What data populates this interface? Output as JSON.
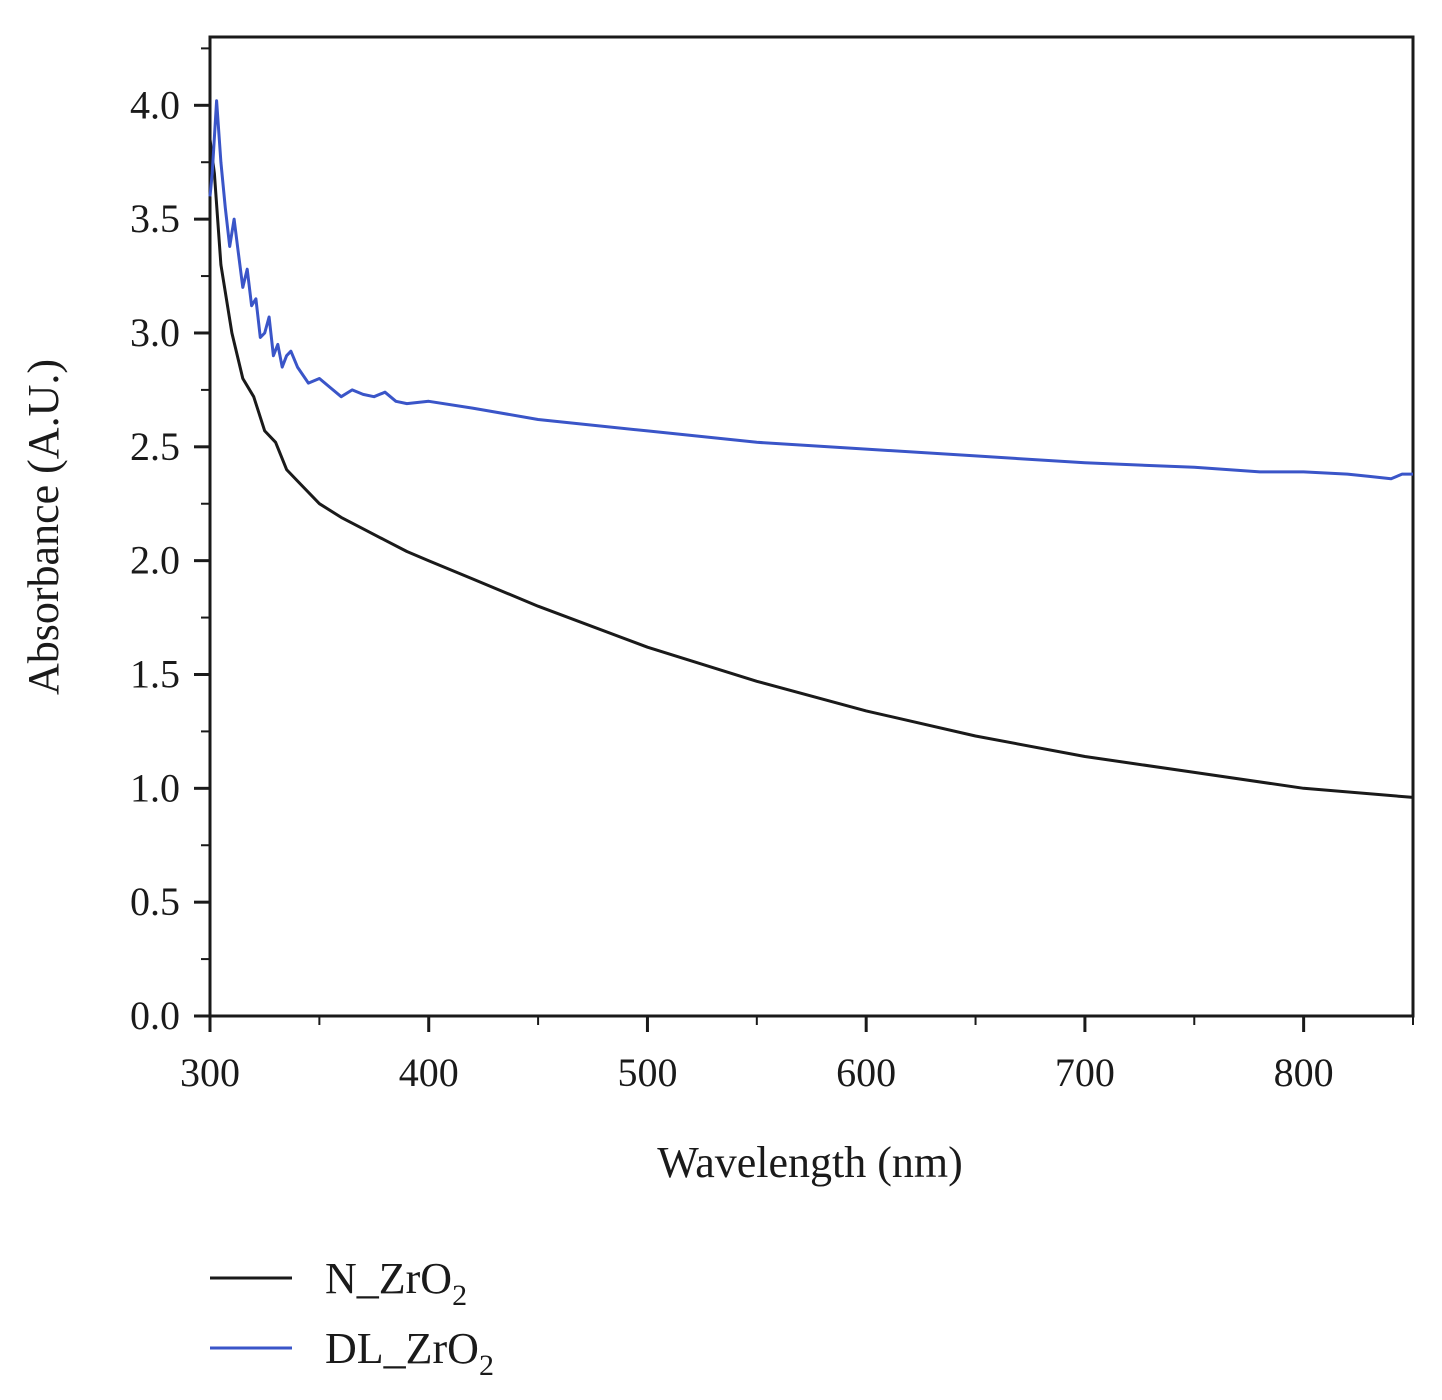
{
  "chart_data": {
    "type": "line",
    "title": "",
    "xlabel": "Wavelength (nm)",
    "ylabel": "Absorbance (A.U.)",
    "xlim": [
      300,
      850
    ],
    "ylim": [
      0.0,
      4.3
    ],
    "xticks": [
      "300",
      "400",
      "500",
      "600",
      "700",
      "800"
    ],
    "yticks": [
      "0.0",
      "0.5",
      "1.0",
      "1.5",
      "2.0",
      "2.5",
      "3.0",
      "3.5",
      "4.0"
    ],
    "grid": false,
    "legend_position": "bottom-left",
    "series": [
      {
        "name": "N_ZrO2",
        "name_main": "N_ZrO",
        "name_sub": "2",
        "color": "#1a1a1a",
        "x": [
          300,
          302,
          305,
          310,
          315,
          320,
          325,
          330,
          335,
          340,
          350,
          360,
          370,
          380,
          390,
          400,
          420,
          450,
          500,
          550,
          600,
          650,
          700,
          750,
          800,
          850
        ],
        "y": [
          3.85,
          3.7,
          3.3,
          3.0,
          2.8,
          2.72,
          2.57,
          2.52,
          2.4,
          2.35,
          2.25,
          2.19,
          2.14,
          2.09,
          2.04,
          2.0,
          1.92,
          1.8,
          1.62,
          1.47,
          1.34,
          1.23,
          1.14,
          1.07,
          1.0,
          0.96
        ]
      },
      {
        "name": "DL_ZrO2",
        "name_main": "DL_ZrO",
        "name_sub": "2",
        "color": "#3a55c8",
        "x": [
          300,
          301,
          303,
          305,
          307,
          309,
          311,
          313,
          315,
          317,
          319,
          321,
          323,
          325,
          327,
          329,
          331,
          333,
          335,
          337,
          340,
          345,
          350,
          355,
          360,
          365,
          370,
          375,
          380,
          385,
          390,
          400,
          420,
          450,
          500,
          550,
          600,
          650,
          700,
          750,
          780,
          800,
          820,
          830,
          840,
          845,
          850
        ],
        "y": [
          3.6,
          3.7,
          4.02,
          3.75,
          3.55,
          3.38,
          3.5,
          3.35,
          3.2,
          3.28,
          3.12,
          3.15,
          2.98,
          3.0,
          3.07,
          2.9,
          2.95,
          2.85,
          2.9,
          2.92,
          2.85,
          2.78,
          2.8,
          2.76,
          2.72,
          2.75,
          2.73,
          2.72,
          2.74,
          2.7,
          2.69,
          2.7,
          2.67,
          2.62,
          2.57,
          2.52,
          2.49,
          2.46,
          2.43,
          2.41,
          2.39,
          2.39,
          2.38,
          2.37,
          2.36,
          2.38,
          2.38
        ]
      }
    ]
  }
}
